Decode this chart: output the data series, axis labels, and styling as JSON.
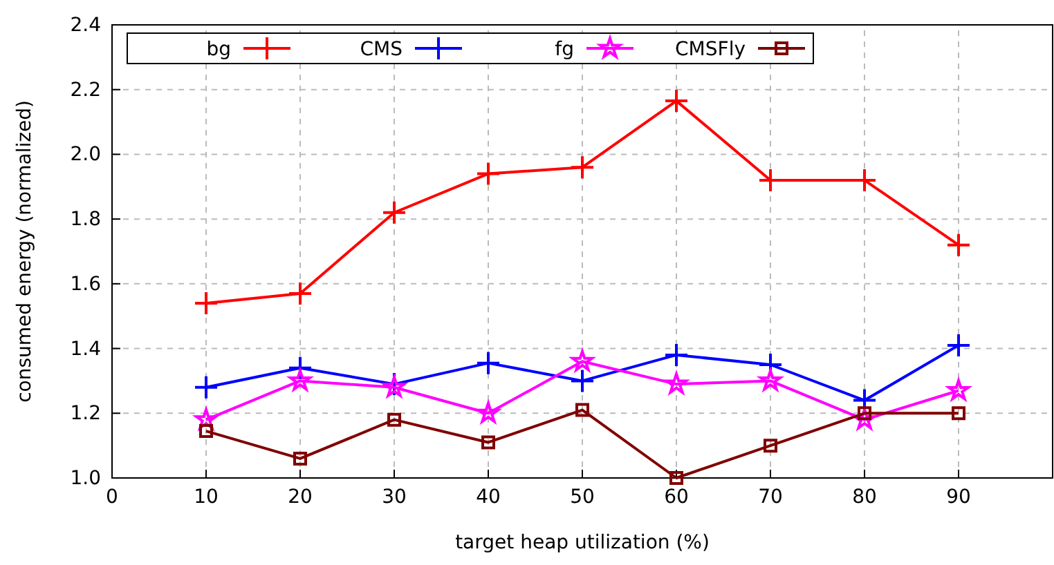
{
  "chart_data": {
    "type": "line",
    "xlabel": "target heap utilization (%)",
    "ylabel": "consumed energy (normalized)",
    "x": [
      10,
      20,
      30,
      40,
      50,
      60,
      70,
      80,
      90
    ],
    "series": [
      {
        "name": "bg",
        "color": "#ff0000",
        "marker": "cross",
        "values": [
          1.54,
          1.57,
          1.82,
          1.94,
          1.96,
          2.165,
          1.92,
          1.92,
          1.72
        ]
      },
      {
        "name": "CMS",
        "color": "#0000ff",
        "marker": "cross",
        "values": [
          1.28,
          1.34,
          1.29,
          1.355,
          1.3,
          1.38,
          1.35,
          1.24,
          1.41
        ]
      },
      {
        "name": "fg",
        "color": "#ff00ff",
        "marker": "star",
        "values": [
          1.18,
          1.3,
          1.28,
          1.2,
          1.36,
          1.29,
          1.3,
          1.18,
          1.27
        ]
      },
      {
        "name": "CMSFly",
        "color": "#800000",
        "marker": "square",
        "values": [
          1.145,
          1.06,
          1.18,
          1.11,
          1.21,
          1.0,
          1.1,
          1.2,
          1.2
        ]
      }
    ],
    "xlim": [
      0,
      100
    ],
    "xticks": [
      0,
      10,
      20,
      30,
      40,
      50,
      60,
      70,
      80,
      90
    ],
    "ylim": [
      1.0,
      2.4
    ],
    "yticks": [
      {
        "value": 1.0,
        "label": "1.0"
      },
      {
        "value": 1.2,
        "label": "1.2"
      },
      {
        "value": 1.4,
        "label": "1.4"
      },
      {
        "value": 1.6,
        "label": "1.6"
      },
      {
        "value": 1.8,
        "label": "1.8"
      },
      {
        "value": 2.0,
        "label": "2.0"
      },
      {
        "value": 2.2,
        "label": "2.2"
      },
      {
        "value": 2.4,
        "label": "2.4"
      }
    ],
    "grid": true,
    "legend": "top",
    "line_style": "solid"
  }
}
